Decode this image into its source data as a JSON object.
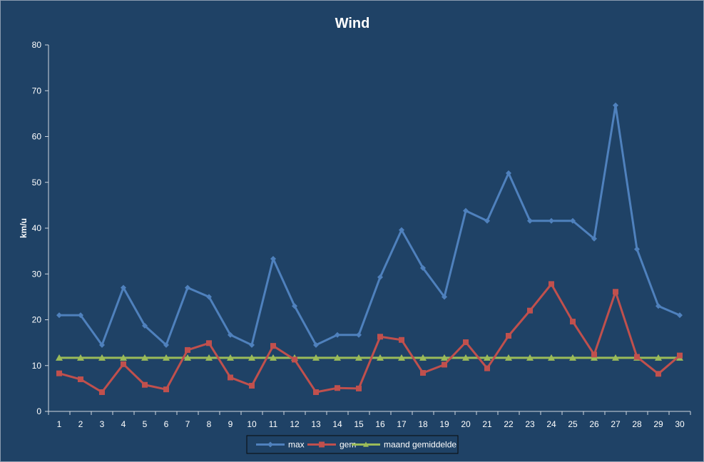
{
  "chart_data": {
    "type": "line",
    "title": "Wind",
    "xlabel": "",
    "ylabel": "km/u",
    "ylim": [
      0,
      80
    ],
    "yticks": [
      0,
      10,
      20,
      30,
      40,
      50,
      60,
      70,
      80
    ],
    "grid": false,
    "legend_position": "bottom",
    "x": [
      "1",
      "2",
      "3",
      "4",
      "5",
      "6",
      "7",
      "8",
      "9",
      "10",
      "11",
      "12",
      "13",
      "14",
      "15",
      "16",
      "17",
      "18",
      "19",
      "20",
      "21",
      "22",
      "23",
      "24",
      "25",
      "26",
      "27",
      "28",
      "29",
      "30"
    ],
    "series": [
      {
        "name": "max",
        "color": "#4f81bd",
        "marker": "diamond",
        "values": [
          21,
          21,
          14.5,
          27,
          18.7,
          14.5,
          27,
          25,
          16.7,
          14.5,
          33.3,
          23,
          14.5,
          16.7,
          16.7,
          29.3,
          39.6,
          31.3,
          25,
          43.8,
          41.6,
          52,
          41.6,
          41.6,
          41.6,
          37.7,
          66.8,
          35.4,
          23,
          21
        ]
      },
      {
        "name": "gem",
        "color": "#c0504d",
        "marker": "square",
        "values": [
          8.3,
          7,
          4.2,
          10.3,
          5.8,
          4.8,
          13.4,
          14.9,
          7.4,
          5.6,
          14.3,
          11.3,
          4.2,
          5.1,
          5,
          16.3,
          15.6,
          8.4,
          10.2,
          15.1,
          9.4,
          16.5,
          22,
          27.8,
          19.6,
          12.4,
          26.1,
          11.9,
          8.2,
          12.2
        ]
      },
      {
        "name": "maand gemiddelde",
        "color": "#9bbb59",
        "marker": "triangle",
        "values": [
          11.7,
          11.7,
          11.7,
          11.7,
          11.7,
          11.7,
          11.7,
          11.7,
          11.7,
          11.7,
          11.7,
          11.7,
          11.7,
          11.7,
          11.7,
          11.7,
          11.7,
          11.7,
          11.7,
          11.7,
          11.7,
          11.7,
          11.7,
          11.7,
          11.7,
          11.7,
          11.7,
          11.7,
          11.7,
          11.7
        ]
      }
    ]
  }
}
